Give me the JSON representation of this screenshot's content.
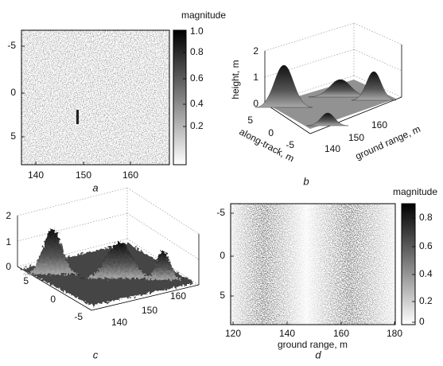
{
  "panels": [
    {
      "label": "a",
      "colorbar_title": "magnitude",
      "colorbar_ticks": [
        "1.0",
        "0.8",
        "0.6",
        "0.4",
        "0.2"
      ],
      "yticks": [
        "-5",
        "0",
        "5"
      ],
      "xticks": [
        "140",
        "150",
        "160"
      ]
    },
    {
      "label": "b",
      "z_label": "height, m",
      "y_label": "along-track, m",
      "x_label": "ground range, m",
      "zticks": [
        "2",
        "1",
        "0"
      ],
      "yticks": [
        "5",
        "0",
        "-5"
      ],
      "xticks": [
        "140",
        "150",
        "160"
      ]
    },
    {
      "label": "c",
      "zticks": [
        "2",
        "1",
        "0"
      ],
      "yticks": [
        "5",
        "0",
        "-5"
      ],
      "xticks": [
        "140",
        "150",
        "160"
      ]
    },
    {
      "label": "d",
      "colorbar_title": "magnitude",
      "colorbar_ticks": [
        "0.8",
        "0.6",
        "0.4",
        "0.2",
        "0"
      ],
      "yticks": [
        "-5",
        "0",
        "5"
      ],
      "xticks": [
        "120",
        "140",
        "160",
        "180"
      ],
      "x_label": "ground range, m"
    }
  ]
}
